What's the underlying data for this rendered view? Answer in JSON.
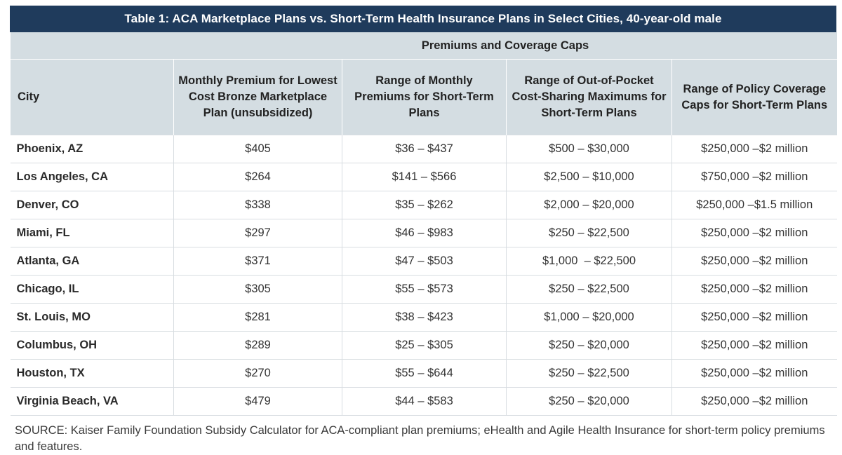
{
  "title": "Table 1: ACA Marketplace Plans vs. Short-Term Health Insurance Plans in Select Cities, 40-year-old male",
  "group_header": "Premiums and Coverage Caps",
  "columns": [
    "City",
    "Monthly Premium for Lowest Cost Bronze Marketplace Plan (unsubsidized)",
    "Range of Monthly Premiums for Short-Term Plans",
    "Range of Out-of-Pocket Cost-Sharing Maximums for Short-Term Plans",
    "Range of Policy Coverage Caps for Short-Term Plans"
  ],
  "rows": [
    [
      "Phoenix, AZ",
      "$405",
      "$36 – $437",
      "$500 – $30,000",
      "$250,000 –$2 million"
    ],
    [
      "Los Angeles, CA",
      "$264",
      "$141 – $566",
      "$2,500 – $10,000",
      "$750,000 –$2 million"
    ],
    [
      "Denver, CO",
      "$338",
      "$35 – $262",
      "$2,000 – $20,000",
      "$250,000 –$1.5 million"
    ],
    [
      "Miami, FL",
      "$297",
      "$46 – $983",
      "$250 – $22,500",
      "$250,000 –$2 million"
    ],
    [
      "Atlanta, GA",
      "$371",
      "$47 – $503",
      "$1,000  – $22,500",
      "$250,000 –$2 million"
    ],
    [
      "Chicago, IL",
      "$305",
      "$55 – $573",
      "$250 – $22,500",
      "$250,000 –$2 million"
    ],
    [
      "St. Louis, MO",
      "$281",
      "$38 – $423",
      "$1,000 – $20,000",
      "$250,000 –$2 million"
    ],
    [
      "Columbus, OH",
      "$289",
      "$25 – $305",
      "$250 – $20,000",
      "$250,000 –$2 million"
    ],
    [
      "Houston, TX",
      "$270",
      "$55 – $644",
      "$250 – $22,500",
      "$250,000 –$2 million"
    ],
    [
      "Virginia Beach, VA",
      "$479",
      "$44 – $583",
      "$250 – $20,000",
      "$250,000 –$2 million"
    ]
  ],
  "source": "SOURCE: Kaiser Family Foundation Subsidy Calculator for ACA-compliant plan premiums; eHealth and Agile Health Insurance for short-term policy premiums and features.",
  "colors": {
    "title_bg": "#1f3b5c",
    "header_bg": "#d4dde2",
    "grid": "#d8dde1"
  }
}
